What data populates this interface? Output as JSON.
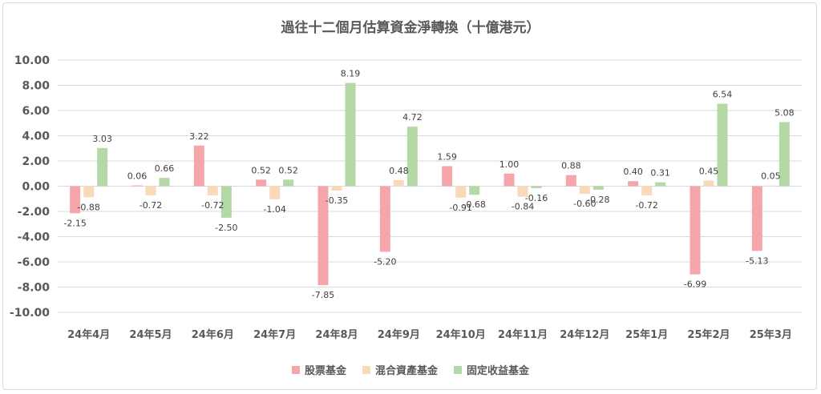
{
  "chart_data": {
    "type": "bar",
    "title": "過往十二個月估算資金淨轉換（十億港元）",
    "categories": [
      "24年4月",
      "24年5月",
      "24年6月",
      "24年7月",
      "24年8月",
      "24年9月",
      "24年10月",
      "24年11月",
      "24年12月",
      "25年1月",
      "25年2月",
      "25年3月"
    ],
    "series": [
      {
        "name": "股票基金",
        "color": "#f4a6ab",
        "values": [
          -2.15,
          0.06,
          3.22,
          0.52,
          -7.85,
          -5.2,
          1.59,
          1.0,
          0.88,
          0.4,
          -6.99,
          -5.13
        ]
      },
      {
        "name": "混合資產基金",
        "color": "#f8d9b8",
        "values": [
          -0.88,
          -0.72,
          -0.72,
          -1.04,
          -0.35,
          0.48,
          -0.91,
          -0.84,
          -0.6,
          -0.72,
          0.45,
          0.05
        ]
      },
      {
        "name": "固定收益基金",
        "color": "#b4d8a6",
        "values": [
          3.03,
          0.66,
          -2.5,
          0.52,
          8.19,
          4.72,
          -0.68,
          -0.16,
          -0.28,
          0.31,
          6.54,
          5.08
        ]
      }
    ],
    "yticks": [
      "10.00",
      "8.00",
      "6.00",
      "4.00",
      "2.00",
      "0.00",
      "-2.00",
      "-4.00",
      "-6.00",
      "-8.00",
      "-10.00"
    ],
    "ylim": [
      -10,
      10
    ],
    "grid": true,
    "legend_position": "bottom"
  }
}
